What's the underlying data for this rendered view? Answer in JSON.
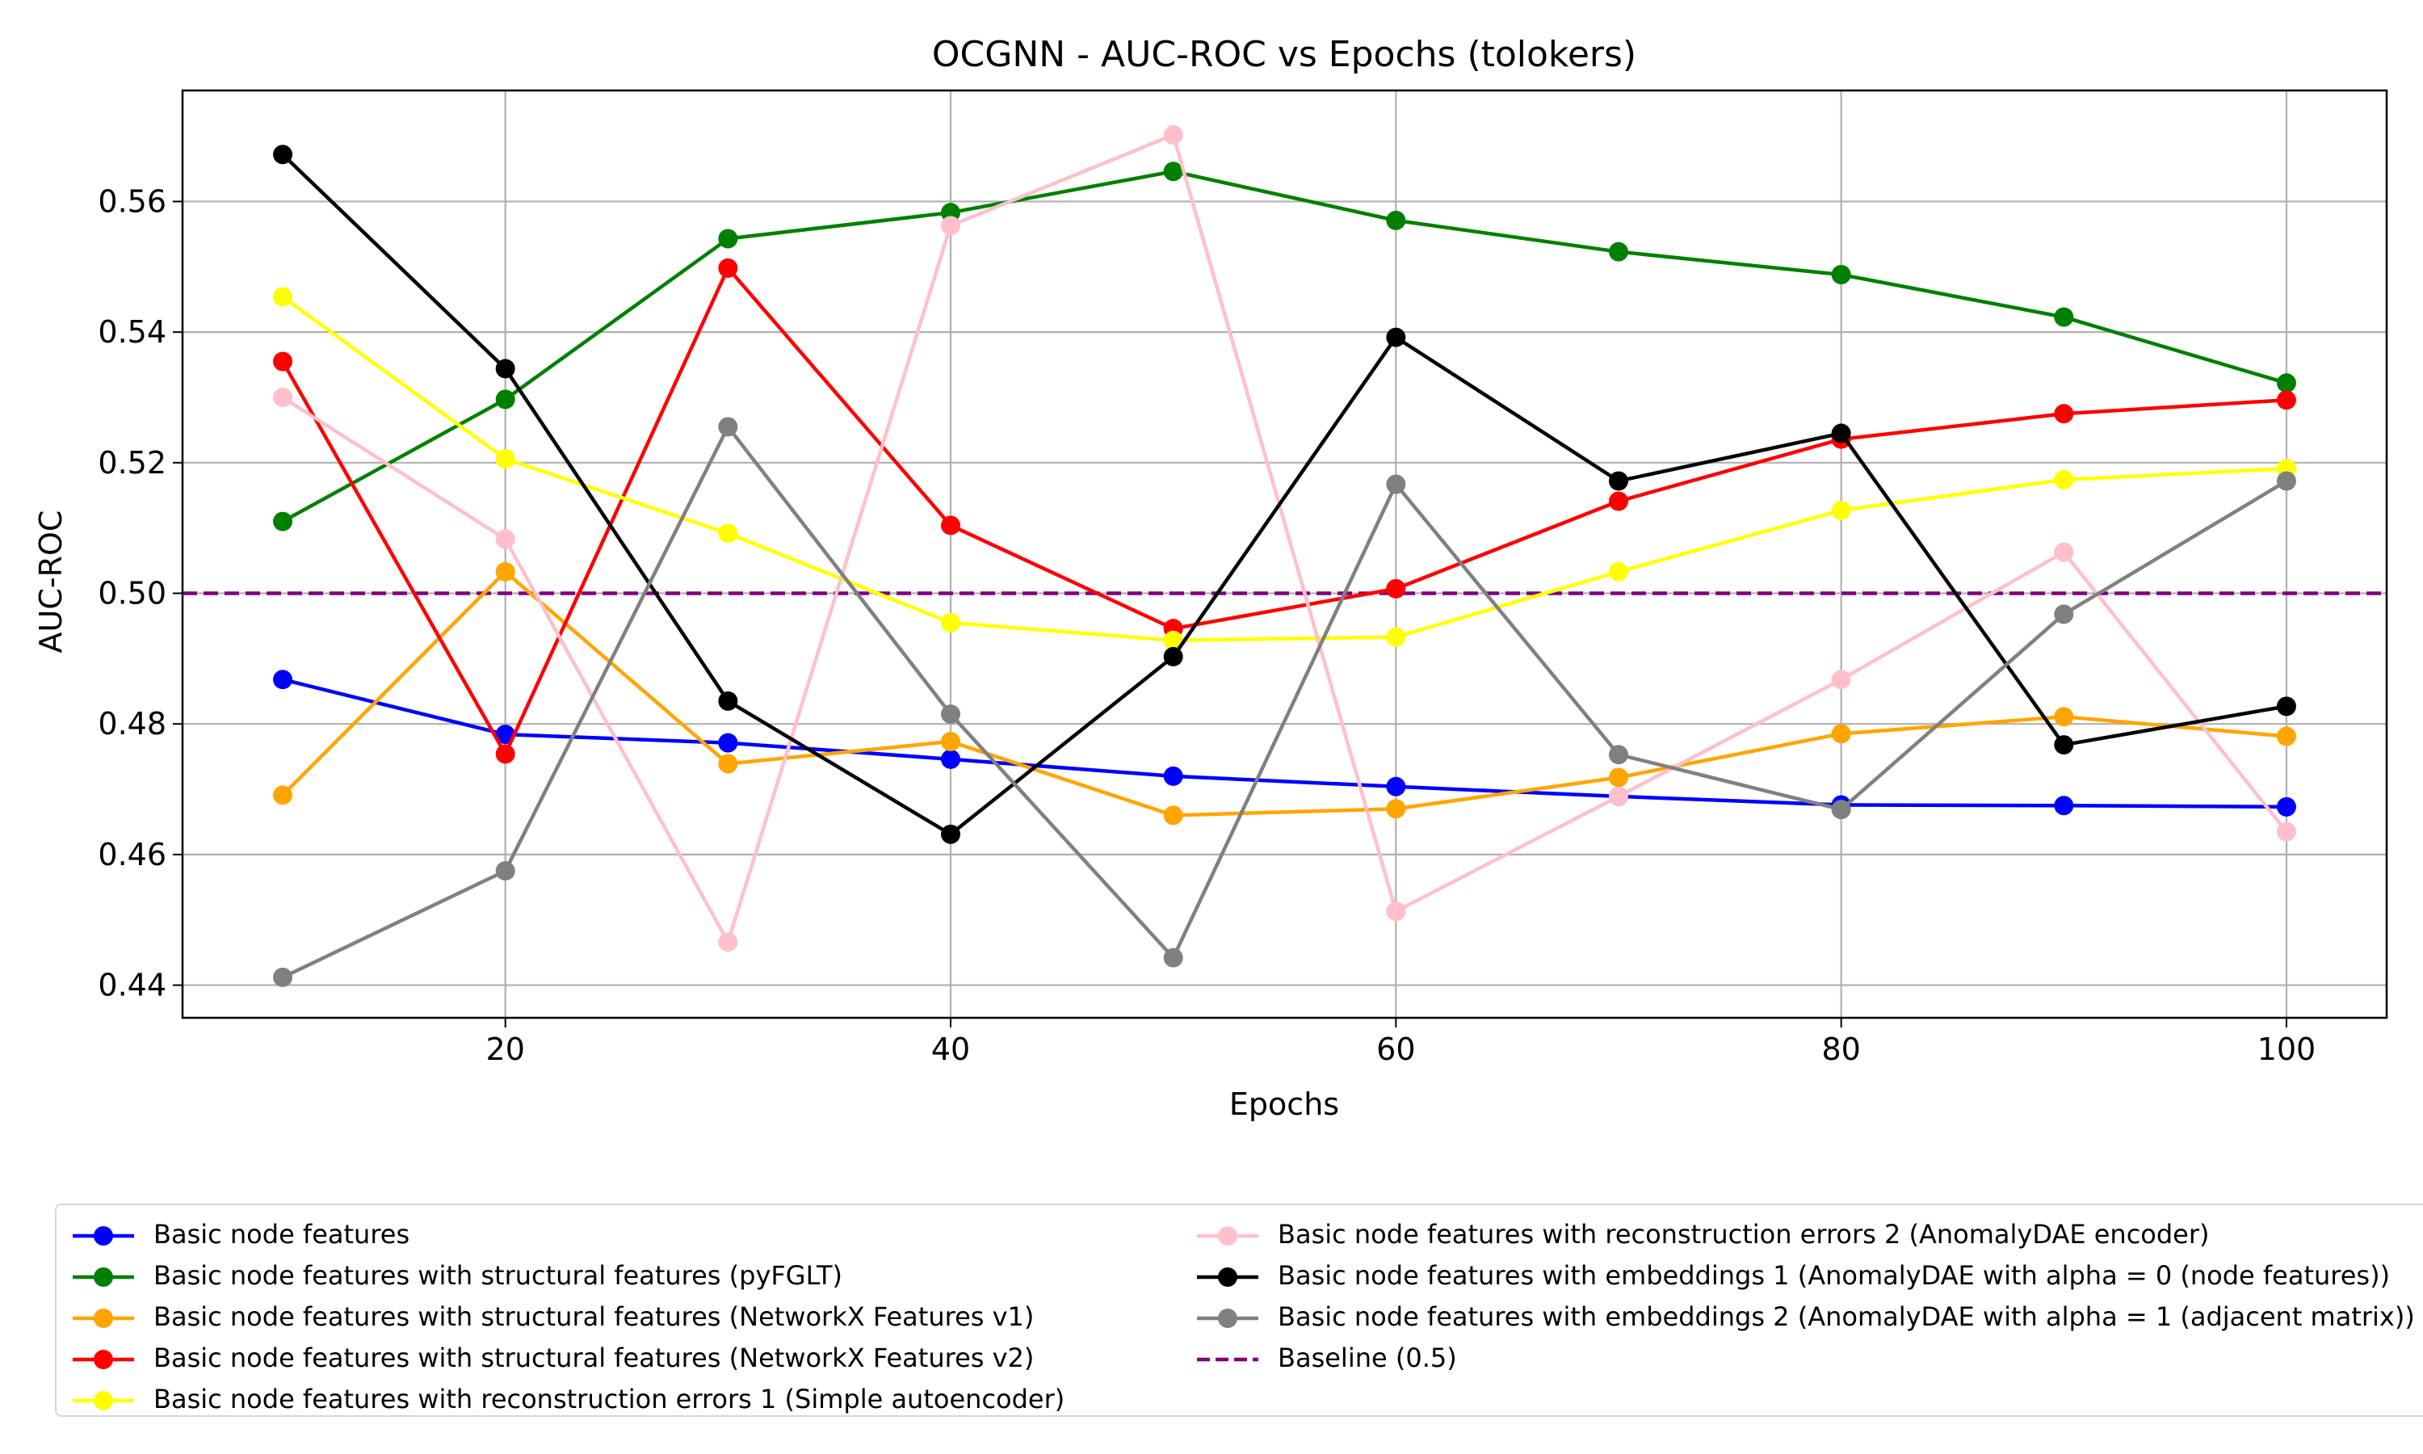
{
  "chart_data": {
    "type": "line",
    "title": "OCGNN - AUC-ROC vs Epochs (tolokers)",
    "xlabel": "Epochs",
    "ylabel": "AUC-ROC",
    "xlim": [
      5.5,
      104.5
    ],
    "ylim": [
      0.435,
      0.577
    ],
    "xticks": [
      20,
      40,
      60,
      80,
      100
    ],
    "yticks": [
      0.44,
      0.46,
      0.48,
      0.5,
      0.52,
      0.54,
      0.56
    ],
    "ytick_labels": [
      "0.44",
      "0.46",
      "0.48",
      "0.50",
      "0.52",
      "0.54",
      "0.56"
    ],
    "grid": true,
    "legend_position": "bottom",
    "x": [
      10,
      20,
      30,
      40,
      50,
      60,
      70,
      80,
      90,
      100
    ],
    "series": [
      {
        "name": "Basic node features",
        "color": "#0000ff",
        "values": [
          0.4868,
          0.4784,
          0.4771,
          0.4746,
          0.472,
          0.4704,
          0.4689,
          0.4676,
          0.4675,
          0.4673
        ]
      },
      {
        "name": "Basic node features with structural features (pyFGLT)",
        "color": "#008000",
        "values": [
          0.511,
          0.5297,
          0.5543,
          0.5583,
          0.5646,
          0.5571,
          0.5523,
          0.5488,
          0.5423,
          0.5322
        ]
      },
      {
        "name": "Basic node features with structural features (NetworkX Features v1)",
        "color": "#ffa500",
        "values": [
          0.4691,
          0.5033,
          0.4739,
          0.4773,
          0.466,
          0.467,
          0.4718,
          0.4785,
          0.4811,
          0.4781
        ]
      },
      {
        "name": "Basic node features with structural features (NetworkX Features v2)",
        "color": "#ff0000",
        "values": [
          0.5355,
          0.4754,
          0.5498,
          0.5104,
          0.4946,
          0.5007,
          0.5141,
          0.5236,
          0.5275,
          0.5296
        ]
      },
      {
        "name": "Basic node features with reconstruction errors 1 (Simple autoencoder)",
        "color": "#ffff00",
        "values": [
          0.5454,
          0.5206,
          0.5092,
          0.4955,
          0.4928,
          0.4933,
          0.5033,
          0.5127,
          0.5174,
          0.5191
        ]
      },
      {
        "name": "Basic node features with reconstruction errors 2 (AnomalyDAE encoder)",
        "color": "#ffc0cb",
        "values": [
          0.53,
          0.5083,
          0.4466,
          0.5563,
          0.5702,
          0.4513,
          0.4689,
          0.4868,
          0.5063,
          0.4635
        ]
      },
      {
        "name": "Basic node features with embeddings 1 (AnomalyDAE with alpha = 0 (node features))",
        "color": "#000000",
        "values": [
          0.5672,
          0.5344,
          0.4835,
          0.4631,
          0.4903,
          0.5392,
          0.5172,
          0.5245,
          0.4768,
          0.4827
        ]
      },
      {
        "name": "Basic node features with embeddings 2 (AnomalyDAE with alpha = 1 (adjacent matrix))",
        "color": "#808080",
        "values": [
          0.4412,
          0.4575,
          0.5255,
          0.4815,
          0.4442,
          0.5167,
          0.4753,
          0.4669,
          0.4968,
          0.5172
        ]
      }
    ],
    "baseline": {
      "name": "Baseline (0.5)",
      "value": 0.5,
      "color": "#800080",
      "style": "dashed"
    }
  }
}
